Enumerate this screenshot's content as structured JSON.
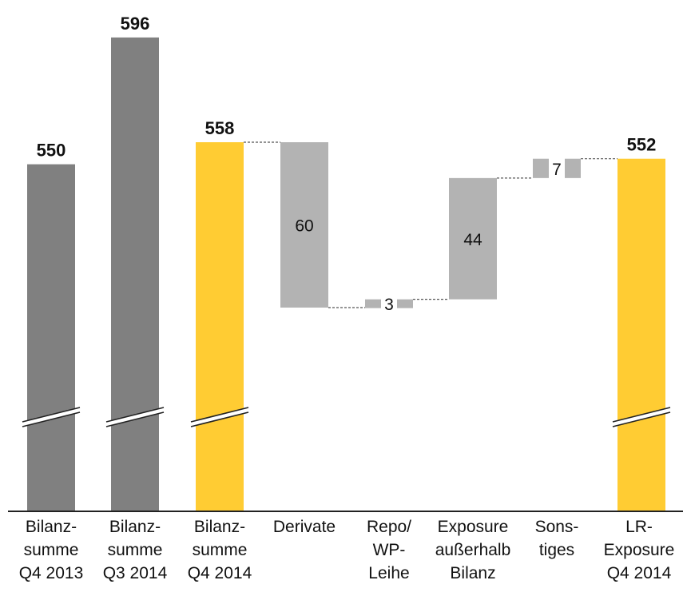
{
  "chart_data": {
    "type": "bar",
    "subtype": "waterfall",
    "axis_break": true,
    "grid": false,
    "legend": "none",
    "colors": {
      "total_dark": "#808080",
      "total_highlight": "#FFCC33",
      "step": "#B3B3B3",
      "axis": "#222222",
      "connector": "#555555"
    },
    "bars": [
      {
        "category": "Bilanz-\nsumme\nQ4 2013",
        "kind": "total",
        "color_role": "total_dark",
        "value": 550,
        "label": "550"
      },
      {
        "category": "Bilanz-\nsumme\nQ3 2014",
        "kind": "total",
        "color_role": "total_dark",
        "value": 596,
        "label": "596"
      },
      {
        "category": "Bilanz-\nsumme\nQ4 2014",
        "kind": "total",
        "color_role": "total_highlight",
        "value": 558,
        "label": "558"
      },
      {
        "category": "Derivate",
        "kind": "step",
        "color_role": "step",
        "from": 558,
        "to": 498,
        "label": "60"
      },
      {
        "category": "Repo/\nWP-\nLeihe",
        "kind": "step",
        "color_role": "step",
        "from": 498,
        "to": 501,
        "label": "3"
      },
      {
        "category": "Exposure\naußerhalb\nBilanz",
        "kind": "step",
        "color_role": "step",
        "from": 501,
        "to": 545,
        "label": "44"
      },
      {
        "category": "Sons-\ntiges",
        "kind": "step",
        "color_role": "step",
        "from": 545,
        "to": 552,
        "label": "7"
      },
      {
        "category": "LR-\nExposure\nQ4 2014",
        "kind": "total",
        "color_role": "total_highlight",
        "value": 552,
        "label": "552"
      }
    ]
  }
}
